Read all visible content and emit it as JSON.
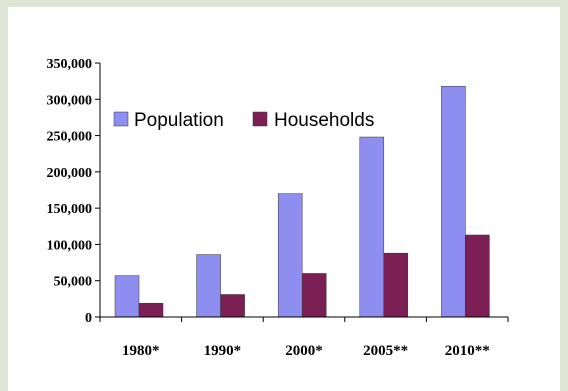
{
  "chart_data": {
    "type": "bar",
    "title": "",
    "xlabel": "",
    "ylabel": "",
    "categories": [
      "1980*",
      "1990*",
      "2000*",
      "2005**",
      "2010**"
    ],
    "series": [
      {
        "name": "Population",
        "values": [
          57000,
          86000,
          170000,
          248000,
          318000
        ],
        "color": "#8e8ef0"
      },
      {
        "name": "Households",
        "values": [
          19000,
          31000,
          60000,
          88000,
          113000
        ],
        "color": "#7b1f54"
      }
    ],
    "ylim": [
      0,
      350000
    ],
    "yticks": [
      0,
      50000,
      100000,
      150000,
      200000,
      250000,
      300000,
      350000
    ],
    "ytick_labels": [
      "0",
      "50,000",
      "100,000",
      "150,000",
      "200,000",
      "250,000",
      "300,000",
      "350,000"
    ],
    "grid": false,
    "legend": "top-left inside plot"
  }
}
